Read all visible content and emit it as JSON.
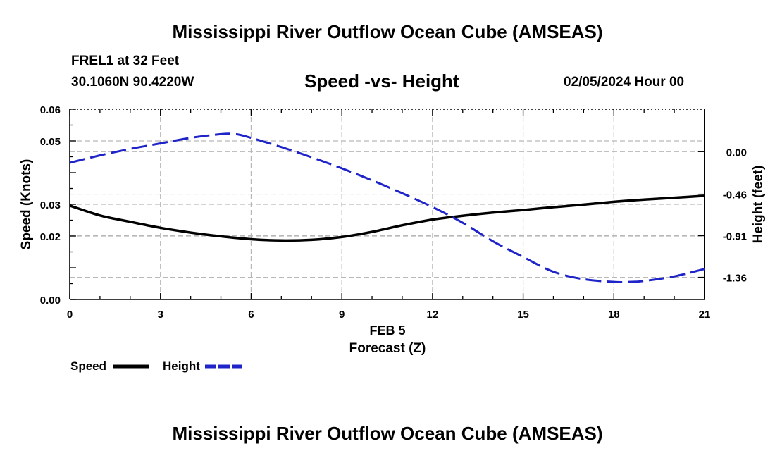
{
  "page": {
    "title_top": "Mississippi River Outflow Ocean Cube (AMSEAS)",
    "title_bottom": "Mississippi River Outflow Ocean Cube (AMSEAS)",
    "station": "FREL1 at 32 Feet",
    "coords": "30.1060N  90.4220W",
    "datetime": "02/05/2024 Hour 00"
  },
  "legend": {
    "speed_label": "Speed",
    "height_label": "Height"
  },
  "colors": {
    "speed": "#000000",
    "height": "#1f24c8",
    "grid": "#b8b8b8"
  },
  "chart_data": {
    "type": "line",
    "title": "Speed -vs- Height",
    "xlabel": "Forecast (Z)",
    "xdate_label": "FEB 5",
    "ylabel": "Speed (Knots)",
    "y2label": "Height (feet)",
    "xlim": [
      0,
      21
    ],
    "ylim": [
      0,
      0.06
    ],
    "y2lim": [
      -1.6,
      0.46
    ],
    "xticks": [
      0,
      3,
      6,
      9,
      12,
      15,
      18,
      21
    ],
    "xtick_labels": [
      "0",
      "3",
      "6",
      "9",
      "12",
      "15",
      "18",
      "21"
    ],
    "yticks": [
      0.0,
      0.02,
      0.03,
      0.05,
      0.06
    ],
    "ytick_labels": [
      "0.00",
      "0.02",
      "0.03",
      "0.05",
      "0.06"
    ],
    "y2ticks": [
      0.0,
      -0.46,
      -0.91,
      -1.36
    ],
    "y2tick_labels": [
      "0.00",
      "-0.46",
      "-0.91",
      "-1.36"
    ],
    "grid": true,
    "series": [
      {
        "name": "Speed",
        "axis": "left",
        "style": "solid",
        "x": [
          0,
          1,
          2,
          3,
          4,
          5,
          6,
          7,
          8,
          9,
          10,
          11,
          12,
          13,
          14,
          15,
          16,
          17,
          18,
          19,
          20,
          21
        ],
        "values": [
          0.0296,
          0.0265,
          0.0245,
          0.0226,
          0.0211,
          0.0199,
          0.019,
          0.0186,
          0.0188,
          0.0197,
          0.0213,
          0.0234,
          0.0252,
          0.0264,
          0.0274,
          0.0282,
          0.0291,
          0.0299,
          0.0308,
          0.0315,
          0.0321,
          0.0327
        ]
      },
      {
        "name": "Height",
        "axis": "right",
        "style": "dashed",
        "x": [
          0,
          1,
          2,
          3,
          4,
          5,
          5.5,
          6,
          7,
          8,
          9,
          10,
          11,
          12,
          13,
          14,
          15,
          16,
          17,
          18,
          18.5,
          19,
          20,
          21
        ],
        "values": [
          -0.12,
          -0.04,
          0.03,
          0.09,
          0.15,
          0.19,
          0.19,
          0.15,
          0.05,
          -0.06,
          -0.18,
          -0.31,
          -0.45,
          -0.6,
          -0.77,
          -0.97,
          -1.14,
          -1.3,
          -1.38,
          -1.41,
          -1.41,
          -1.4,
          -1.35,
          -1.27
        ]
      }
    ]
  }
}
